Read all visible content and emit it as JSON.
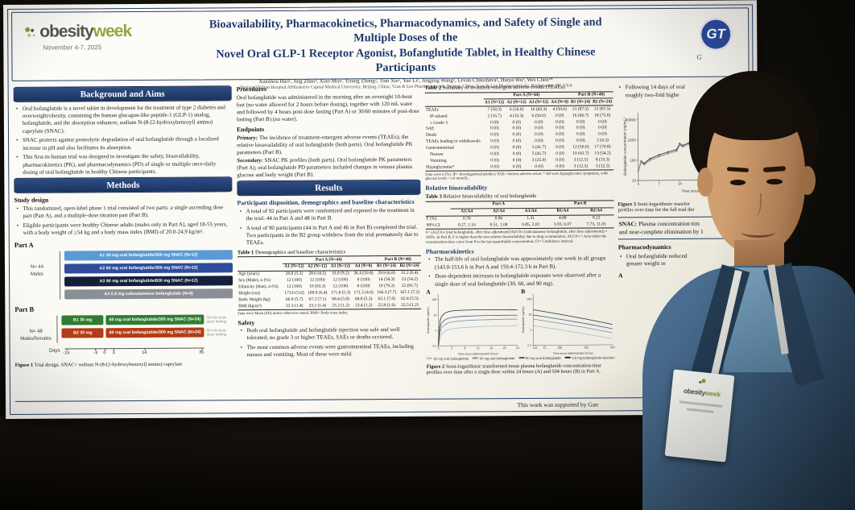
{
  "conference": {
    "logo_obesity": "obesity",
    "logo_week": "week",
    "dates": "November 4-7, 2025"
  },
  "header": {
    "title_line1": "Bioavailability, Pharmacokinetics, Pharmacodynamics, and Safety of Single and Multiple Doses of the",
    "title_line2": "Novel Oral GLP-1 Receptor Agonist, Bofanglutide Tablet, in Healthy Chinese Participants",
    "authors": "Xuezhou Hao¹, Jing Zhao², Xiao Min², Yining Zhang², Tian Xie², Yue Li², Jingjing Wang², Levan Chikobava¹, Haiya Wu³, Wei Chen¹*",
    "affiliations": "¹Beijing Shijitan Hospital Affiliated to Capital Medical University, Beijing, China; ²Gan & Lee Pharmaceuticals, Beijing, China; ³Gan & Lee Pharmaceuticals, Bridgewater, NJ, USA",
    "logo_monogram": "GT",
    "logo_sub_fragment": "G"
  },
  "background": {
    "heading": "Background and Aims",
    "bullets": [
      "Oral bofanglutide is a novel tablet in development for the treatment of type 2 diabetes and overweight/obesity, containing the human glucagon-like peptide-1 (GLP-1) analog, bofanglutide, and the absorption enhancer, sodium N-(8-[2-hydroxybenzoyl] amino) caprylate (SNAC).",
      "SNAC protects against proteolytic degradation of oral bofanglutide through a localized increase in pH and also facilitates its absorption.",
      "This first-in-human trial was designed to investigate the safety, bioavailability, pharmacokinetics (PK), and pharmacodynamics (PD) of single or multiple once-daily dosing of oral bofanglutide in healthy Chinese participants."
    ]
  },
  "methods": {
    "heading": "Methods",
    "study_design_heading": "Study design",
    "bullets": [
      "This randomized, open-label phase 1 trial consisted of two parts: a single ascending dose part (Part A), and a multiple-dose titration part (Part B).",
      "Eligible participants were healthy Chinese adults (males only in Part A), aged 18-55 years, with a body weight of ≥54 kg and a body mass index (BMI) of 20.0-24.9 kg/m²."
    ]
  },
  "figure1": {
    "part_a": {
      "label": "Part A",
      "n": "N= 44",
      "pop": "Males",
      "groups": [
        {
          "text": "A1  30 mg oral bofanglutide/300 mg SNAC (N=12)",
          "color": "#5b9bd5"
        },
        {
          "text": "A2  60 mg oral bofanglutide/300 mg SNAC (N=12)",
          "color": "#2e4d9e"
        },
        {
          "text": "A3  90 mg oral bofanglutide/600 mg SNAC (N=12)",
          "color": "#141f3c"
        },
        {
          "text": "A4  0.8 mg subcutaneous bofanglutide (N=8)",
          "color": "#8a8f96"
        }
      ]
    },
    "part_b": {
      "label": "Part B",
      "n": "N= 48",
      "pop": "Males/females",
      "groups": [
        {
          "lead": "B1  30 mg",
          "text": "60 mg oral bofanglutide/300 mg SNAC (N=24)",
          "color": "#2f7d32",
          "note": "30-min post-dose fasting"
        },
        {
          "lead": "B2  30 mg",
          "text": "60 mg oral bofanglutide/300 mg SNAC (N=24)",
          "color": "#b23c17",
          "note": "60-min post-dose fasting"
        }
      ]
    },
    "axis_label": "Days",
    "days": [
      "-14",
      "-3",
      "0",
      "3",
      "14",
      "35"
    ],
    "caption_prefix": "Figure 1",
    "caption_text": " Trial design. SNAC= sodium N-(8-[2-hydroxybenzoyl] amino) caprylate"
  },
  "procedures": {
    "heading": "Procedures",
    "text": "Oral bofanglutide was administered in the morning after an overnight 10-hour fast (no water allowed for 2 hours before dosing), together with 120 mL water and followed by 4 hours post-dose fasting (Part A) or 30/60 minutes of post-dose fasting (Part B) (no water)."
  },
  "endpoints": {
    "heading": "Endpoints",
    "items": [
      {
        "lead": "Primary:",
        "text": "The incidence of treatment-emergent adverse events (TEAEs); the relative bioavailability of oral bofanglutide (both parts). Oral bofanglutide PK parameters (Part B)."
      },
      {
        "lead": "Secondary:",
        "text": "SNAC PK profiles (both parts). Oral bofanglutide PK parameters (Part A); oral bofanglutide PD parameters included changes in venous plasma glucose and body weight (Part B)."
      }
    ]
  },
  "results": {
    "heading": "Results",
    "participant_heading": "Participant disposition, demographics and baseline characteristics",
    "bullets": [
      "A total of 92 participants were randomized and exposed to the treatment in the trial: 44 in Part A and 48 in Part B.",
      "A total of 90 participants (44 in Part A and 46 in Part B) completed the trial. Two participants in the B2 group withdrew from the trial prematurely due to TEAEs."
    ]
  },
  "table1": {
    "caption_prefix": "Table 1",
    "caption_text": " Demographics and baseline characteristics",
    "col_groups": [
      {
        "label": "Part A (N=44)",
        "span": 4
      },
      {
        "label": "Part B (N=48)",
        "span": 2
      }
    ],
    "columns": [
      "A1 (N=12)",
      "A2 (N=12)",
      "A3 (N=12)",
      "A4 (N=8)",
      "B1 (N=24)",
      "B2 (N=24)"
    ],
    "rows": [
      {
        "label": "Age (years)",
        "values": [
          "28.8 (5.2)",
          "28.6 (4.5)",
          "33.0 (9.2)",
          "36.4 (10.8)",
          "29.9 (6.8)",
          "31.2 (6.4)"
        ]
      },
      {
        "label": "Sex (Male), n (%)",
        "values": [
          "12 (100)",
          "12 (100)",
          "12 (100)",
          "8 (100)",
          "14 (58.3)",
          "13 (54.2)"
        ]
      },
      {
        "label": "Ethnicity (Han), n (%)",
        "values": [
          "12 (100)",
          "10 (83.3)",
          "12 (100)",
          "8 (100)",
          "19 (79.2)",
          "22 (91.7)"
        ]
      },
      {
        "label": "Height (cm)",
        "values": [
          "173.0 (5.6)",
          "169.9 (6.4)",
          "171.8 (5.3)",
          "171.5 (4.0)",
          "166.3 (7.7)",
          "167.1 (7.2)"
        ]
      },
      {
        "label": "Body Weight (kg)",
        "values": [
          "66.9 (5.7)",
          "67.2 (7.1)",
          "68.4 (5.8)",
          "68.8 (5.3)",
          "63.1 (7.0)",
          "62.8 (5.5)"
        ]
      },
      {
        "label": "BMI (kg/m²)",
        "values": [
          "22.3 (1.4)",
          "23.2 (1.4)",
          "23.2 (1.2)",
          "23.4 (1.2)",
          "22.8 (1.6)",
          "22.5 (1.2)"
        ]
      }
    ],
    "footnote": "Data were Mean (SD) unless otherwise stated. BMI= Body mass index."
  },
  "safety": {
    "heading": "Safety",
    "bullets": [
      "Both oral bofanglutide and bofanglutide injection was safe and well tolerated; no grade 3 or higher TEAEs, SAEs or deaths occurred.",
      "The most common adverse events were gastrointestinal TEAEs, including nausea and vomiting. Most of these were mild."
    ]
  },
  "table2": {
    "caption_prefix": "Table 2",
    "caption_text": " Summary of treatment-emergent adverse events (TEAEs)",
    "col_groups": [
      {
        "label": "Part A (N=44)",
        "span": 4
      },
      {
        "label": "Part B (N=48)",
        "span": 2
      }
    ],
    "columns": [
      "A1 (N=12)",
      "A2 (N=12)",
      "A3 (N=12)",
      "A4 (N=8)",
      "B1 (N=24)",
      "B2 (N=24)"
    ],
    "rows": [
      {
        "label": "TEAEs",
        "values": [
          "7 (58.3)",
          "6 (50.0)",
          "10 (83.3)",
          "4 (50.0)",
          "21 (87.5)",
          "21 (87.5)"
        ]
      },
      {
        "label": "IP-related",
        "indent": true,
        "values": [
          "2 (16.7)",
          "4 (33.3)",
          "6 (50.0)",
          "0 (0)",
          "16 (66.7)",
          "18 (75.0)"
        ]
      },
      {
        "label": "≥ Grade 3",
        "indent": true,
        "values": [
          "0 (0)",
          "0 (0)",
          "0 (0)",
          "0 (0)",
          "0 (0)",
          "0 (0)"
        ]
      },
      {
        "label": "SAE",
        "values": [
          "0 (0)",
          "0 (0)",
          "0 (0)",
          "0 (0)",
          "0 (0)",
          "0 (0)"
        ]
      },
      {
        "label": "Death",
        "values": [
          "0 (0)",
          "0 (0)",
          "0 (0)",
          "0 (0)",
          "0 (0)",
          "0 (0)"
        ]
      },
      {
        "label": "TEAEs leading to withdrawals",
        "values": [
          "0 (0)",
          "0 (0)",
          "0 (0)",
          "0 (0)",
          "0 (0)",
          "2 (8.3)"
        ]
      },
      {
        "label": "Gastrointestinal",
        "values": [
          "0 (0)",
          "0 (0)",
          "5 (41.7)",
          "0 (0)",
          "12 (50.0)",
          "17 (70.8)"
        ]
      },
      {
        "label": "Nausea",
        "indent": true,
        "values": [
          "0 (0)",
          "0 (0)",
          "5 (41.7)",
          "0 (0)",
          "10 (41.7)",
          "13 (54.2)"
        ]
      },
      {
        "label": "Vomiting",
        "indent": true,
        "values": [
          "0 (0)",
          "0 (0)",
          "3 (25.0)",
          "0 (0)",
          "3 (12.5)",
          "8 (33.3)"
        ]
      },
      {
        "label": "Hypoglycemia*",
        "values": [
          "0 (0)",
          "0 (0)",
          "0 (0)",
          "0 (0)",
          "3 (12.5)",
          "3 (12.5)"
        ]
      }
    ],
    "footnote": "Data were n (%). IP= Investigational product; SAE= Serious adverse event. * All were hypoglycemic symptoms, with glucose levels >3.0 mmol/L."
  },
  "bioavailability": {
    "heading": "Relative bioavailability"
  },
  "table3": {
    "caption_prefix": "Table 3",
    "caption_text": " Relative bioavailability of oral bofanglutide",
    "col_groups": [
      {
        "label": "Part A",
        "span": 3
      },
      {
        "label": "Part B",
        "span": 2
      }
    ],
    "columns": [
      "A1/A4",
      "A2/A4",
      "A3/A4",
      "B1/A4",
      "B2/A4"
    ],
    "rows": [
      {
        "label": "F (%)",
        "values": [
          "0.76",
          "0.96",
          "1.31",
          "4.88",
          "9.22"
        ]
      },
      {
        "label": "90% CI",
        "values": [
          "0.27, 1.16",
          "0.51, 1.08",
          "0.85, 2.02",
          "3.93, 6.07",
          "7.73, 11.01"
        ]
      }
    ],
    "footnote": "F= (AUC0-t [oral bofanglutide, after dose adjustment]/AUC0-t [subcutaneous bofanglutide, after dose adjustment]) × 100%. In Part B, F is higher than the true relative bioavailability due to drug accumulation. AUC0-t = Area under the concentration-time curve from 0 to the last quantifiable concentration; CI= Confidence interval."
  },
  "pharmacokinetics": {
    "heading": "Pharmacokinetics",
    "bullets": [
      "The half-life of oral bofanglutide was approximately one week in all groups (143.0-153.6 h in Part A and 159.4-172.3 h in Part B).",
      "Dose-dependent increases in bofanglutide exposure were observed after a single dose of oral bofanglutide (30, 60, and 90 mg)."
    ]
  },
  "figure2": {
    "panel_a": "A",
    "panel_b": "B",
    "legend": [
      {
        "name": "30 mg oral bofanglutide",
        "color": "#a9bccf"
      },
      {
        "name": "60 mg oral bofanglutide",
        "color": "#7390ae"
      },
      {
        "name": "90 mg oral bofanglutide",
        "color": "#3f5d85"
      },
      {
        "name": "0.8 mg bofanglutide injection",
        "color": "#2b2b30"
      }
    ],
    "caption_prefix": "Figure 2",
    "caption_text": " Semi-logarithmic transformed mean plasma bofanglutide concentration-time profiles over time after a single dose within 24 hours (A) and 504 hours (B) in Part A."
  },
  "right_column": {
    "bullet_l1": "Following 14 days of oral",
    "bullet_l2": "roughly two-fold highe",
    "figure3_caption_prefix": "Figure 3",
    "figure3_caption_l1": " Semi-logarithmic transfor",
    "figure3_caption_l2": "profiles over time for the full trial dur",
    "snac_lead": "SNAC:",
    "snac_l1": " Plasma concentration-tim",
    "snac_l2": "and near-complete elimination by 1",
    "pd_heading": "Pharmacodynamics",
    "pd_l1": "Oral bofanglutide reduced",
    "pd_l2": "greater weight re",
    "panel_label": "A"
  },
  "acknowledgment": "This work was supported by Gan",
  "badge": {
    "logo_obesity": "obesity",
    "logo_week": "week"
  },
  "colors": {
    "navy": "#1f3864",
    "poster_bg": "#f8f6f0",
    "logo_green": "#93a543",
    "gt_blue": "#2b4a9c",
    "bar_a1": "#5b9bd5",
    "bar_a2": "#2e4d9e",
    "bar_a3": "#141f3c",
    "bar_a4": "#8a8f96",
    "bar_b1": "#2f7d32",
    "bar_b2": "#b23c17"
  },
  "chart_data": [
    {
      "id": "fig2a",
      "type": "line",
      "y_scale": "log",
      "xlabel": "Time since administration (hour)",
      "ylabel": "Bofanglutide (ng/mL)",
      "x_ticks": [
        0,
        4,
        8,
        12,
        16,
        20,
        24
      ],
      "y_ticks": [
        0.1,
        1,
        10,
        100
      ],
      "x": [
        0,
        0.5,
        1,
        2,
        3,
        4,
        6,
        8,
        12,
        16,
        20,
        24
      ],
      "series": [
        {
          "name": "30 mg oral bofanglutide",
          "color": "#a9bccf",
          "values": [
            0.1,
            0.3,
            0.6,
            0.9,
            1.1,
            1.25,
            1.4,
            1.5,
            1.7,
            1.8,
            1.85,
            1.9
          ]
        },
        {
          "name": "60 mg oral bofanglutide",
          "color": "#7390ae",
          "values": [
            0.1,
            0.8,
            1.5,
            2.3,
            3.0,
            3.4,
            3.9,
            4.2,
            4.6,
            4.8,
            5.0,
            5.0
          ]
        },
        {
          "name": "90 mg oral bofanglutide",
          "color": "#3f5d85",
          "values": [
            0.1,
            1.5,
            3.0,
            4.8,
            6.0,
            6.8,
            7.6,
            8.0,
            8.6,
            8.9,
            9.0,
            9.0
          ]
        },
        {
          "name": "0.8 mg bofanglutide injection",
          "color": "#2b2b30",
          "values": [
            0.1,
            4,
            8,
            13,
            16,
            18,
            19.5,
            20,
            21,
            21,
            20.5,
            20
          ]
        }
      ]
    },
    {
      "id": "fig2b",
      "type": "line",
      "y_scale": "log",
      "xlabel": "Time since administration (hour)",
      "ylabel": "Bofanglutide (ng/mL)",
      "x_ticks": [
        1,
        16,
        72,
        168,
        336,
        504
      ],
      "y_ticks": [
        0.1,
        1,
        10,
        100
      ],
      "x": [
        1,
        16,
        72,
        168,
        336,
        504
      ],
      "series": [
        {
          "name": "30 mg oral bofanglutide",
          "color": "#a9bccf",
          "values": [
            1.9,
            1.8,
            1.4,
            1.0,
            0.5,
            0.25
          ]
        },
        {
          "name": "60 mg oral bofanglutide",
          "color": "#7390ae",
          "values": [
            5.0,
            4.7,
            3.8,
            2.6,
            1.3,
            0.6
          ]
        },
        {
          "name": "90 mg oral bofanglutide",
          "color": "#3f5d85",
          "values": [
            9.0,
            8.6,
            7.0,
            4.8,
            2.4,
            1.1
          ]
        },
        {
          "name": "0.8 mg bofanglutide injection",
          "color": "#2b2b30",
          "values": [
            20,
            19,
            15,
            10,
            4.8,
            2.1
          ]
        }
      ]
    },
    {
      "id": "fig3",
      "type": "line",
      "y_scale": "log",
      "markers": true,
      "xlabel": "Time since",
      "ylabel": "Bofanglutide concentration (ng/mL)",
      "x_ticks": [
        0,
        7,
        14,
        21,
        28,
        35
      ],
      "y_ticks": [
        10,
        100,
        1000,
        10000
      ],
      "x": [
        0,
        1,
        2,
        4,
        7,
        10,
        13,
        14,
        15,
        17,
        20,
        23,
        26,
        29,
        32,
        35
      ],
      "series": [
        {
          "name": "B1",
          "color": "#444a52",
          "values": [
            30,
            90,
            70,
            120,
            180,
            250,
            330,
            650,
            520,
            700,
            850,
            1000,
            1100,
            1150,
            1100,
            1050
          ]
        },
        {
          "name": "B2",
          "color": "#8a8f96",
          "values": [
            30,
            80,
            60,
            100,
            150,
            210,
            280,
            560,
            450,
            600,
            740,
            880,
            980,
            1050,
            1020,
            980
          ]
        }
      ]
    }
  ]
}
